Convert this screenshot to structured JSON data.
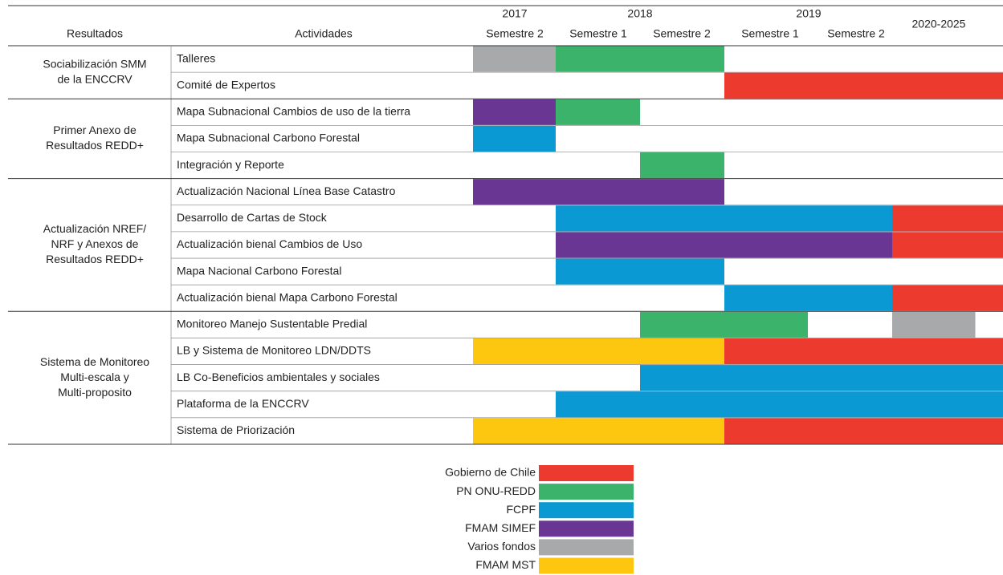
{
  "header": {
    "col_results": "Resultados",
    "col_activities": "Actividades",
    "years": [
      "2017",
      "2018",
      "2019",
      "2020-2025"
    ],
    "semesters": [
      "Semestre 2",
      "Semestre 1",
      "Semestre 2",
      "Semestre 1",
      "Semestre 2"
    ]
  },
  "legend": [
    {
      "name": "Gobierno de Chile",
      "color": "#ec3a2f"
    },
    {
      "name": "PN ONU-REDD",
      "color": "#3bb36a"
    },
    {
      "name": "FCPF",
      "color": "#0a99d2"
    },
    {
      "name": "FMAM SIMEF",
      "color": "#6a3693"
    },
    {
      "name": "Varios fondos",
      "color": "#a8a9ab"
    },
    {
      "name": "FMAM MST",
      "color": "#fdc70f"
    }
  ],
  "groups": [
    {
      "label": [
        "Sociabilización SMM",
        "de la ENCCRV"
      ],
      "rows": [
        {
          "activity": "Talleres",
          "bars": [
            {
              "source": 4,
              "start": 0,
              "end": 1
            },
            {
              "source": 1,
              "start": 1,
              "end": 3
            }
          ]
        },
        {
          "activity": "Comité de Expertos",
          "bars": [
            {
              "source": 0,
              "start": 3,
              "end": 6
            }
          ]
        }
      ]
    },
    {
      "label": [
        "Primer Anexo de",
        "Resultados REDD+"
      ],
      "rows": [
        {
          "activity": "Mapa Subnacional Cambios de uso de la tierra",
          "bars": [
            {
              "source": 3,
              "start": 0,
              "end": 1
            },
            {
              "source": 1,
              "start": 1,
              "end": 2
            }
          ]
        },
        {
          "activity": "Mapa Subnacional Carbono Forestal",
          "bars": [
            {
              "source": 2,
              "start": 0,
              "end": 1
            }
          ]
        },
        {
          "activity": "Integración y Reporte",
          "bars": [
            {
              "source": 1,
              "start": 2,
              "end": 3
            }
          ]
        }
      ]
    },
    {
      "label": [
        "Actualización NREF/",
        "NRF y  Anexos de",
        "Resultados REDD+"
      ],
      "rows": [
        {
          "activity": "Actualización Nacional Línea Base Catastro",
          "bars": [
            {
              "source": 3,
              "start": 0,
              "end": 3
            }
          ]
        },
        {
          "activity": "Desarrollo de Cartas de Stock",
          "bars": [
            {
              "source": 2,
              "start": 1,
              "end": 5
            },
            {
              "source": 0,
              "start": 5,
              "end": 6
            }
          ]
        },
        {
          "activity": "Actualización bienal Cambios de Uso",
          "bars": [
            {
              "source": 3,
              "start": 1,
              "end": 5
            },
            {
              "source": 0,
              "start": 5,
              "end": 6
            }
          ]
        },
        {
          "activity": "Mapa Nacional Carbono Forestal",
          "bars": [
            {
              "source": 2,
              "start": 1,
              "end": 3
            }
          ]
        },
        {
          "activity": "Actualización bienal Mapa Carbono Forestal",
          "bars": [
            {
              "source": 2,
              "start": 3,
              "end": 5
            },
            {
              "source": 0,
              "start": 5,
              "end": 6
            }
          ]
        }
      ]
    },
    {
      "label": [
        "Sistema de Monitoreo",
        "Multi-escala y",
        "Multi-proposito"
      ],
      "rows": [
        {
          "activity": "Monitoreo Manejo Sustentable Predial",
          "bars": [
            {
              "source": 1,
              "start": 2,
              "end": 4
            },
            {
              "source": 4,
              "start": 5,
              "end": 5.75
            }
          ]
        },
        {
          "activity": "LB y Sistema de Monitoreo LDN/DDTS",
          "bars": [
            {
              "source": 5,
              "start": 0,
              "end": 3
            },
            {
              "source": 0,
              "start": 3,
              "end": 6
            }
          ]
        },
        {
          "activity": "LB Co-Beneficios ambientales y sociales",
          "bars": [
            {
              "source": 2,
              "start": 2,
              "end": 6
            }
          ]
        },
        {
          "activity": "Plataforma de la ENCCRV",
          "bars": [
            {
              "source": 2,
              "start": 1,
              "end": 6
            }
          ]
        },
        {
          "activity": "Sistema de Priorización",
          "bars": [
            {
              "source": 5,
              "start": 0,
              "end": 3
            },
            {
              "source": 0,
              "start": 3,
              "end": 6
            }
          ]
        }
      ]
    }
  ]
}
